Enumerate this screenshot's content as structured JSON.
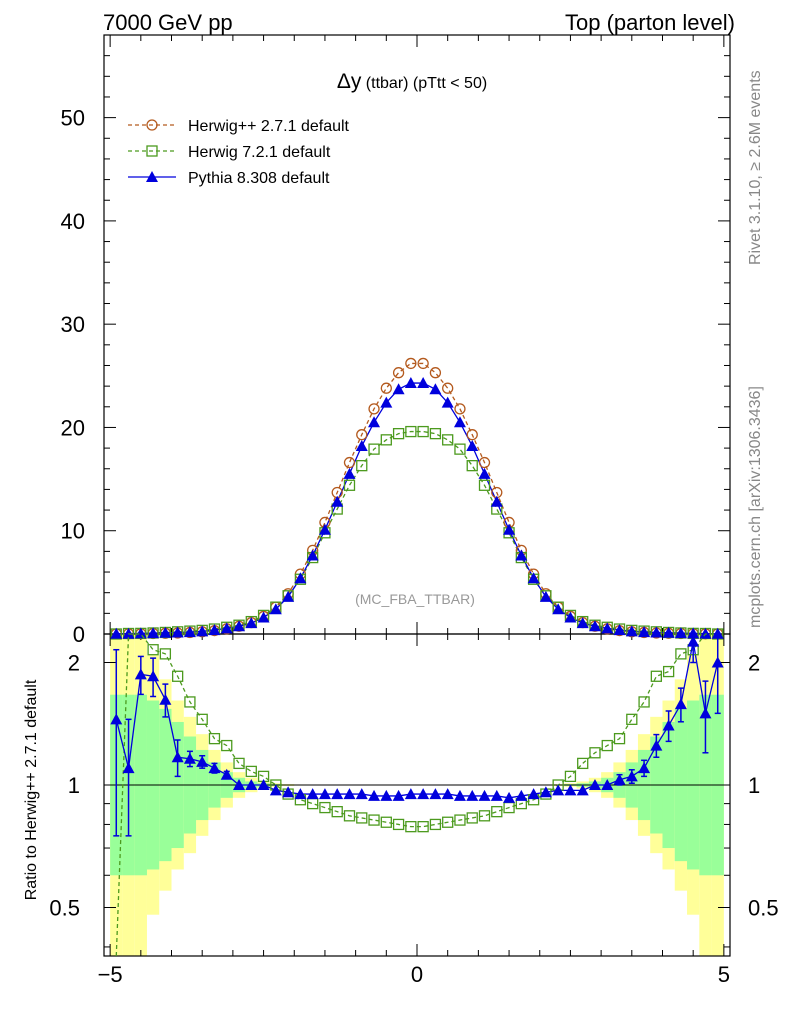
{
  "header": {
    "left": "7000 GeV pp",
    "right": "Top (parton level)"
  },
  "side_labels": {
    "rivet": "Rivet 3.1.10, ≥ 2.6M events",
    "mcplots": "mcplots.cern.ch [arXiv:1306.3436]"
  },
  "plot_title": {
    "main": "Δy",
    "sub": " (ttbar) (pTtt < 50)"
  },
  "watermark": "(MC_FBA_TTBAR)",
  "legend": [
    {
      "label": "Herwig++ 2.7.1 default"
    },
    {
      "label": "Herwig 7.2.1 default"
    },
    {
      "label": "Pythia 8.308 default"
    }
  ],
  "ratio_ylabel": "Ratio to Herwig++ 2.7.1 default",
  "colors": {
    "herwigpp": "#b45a1e",
    "herwig7": "#4c9a1e",
    "pythia": "#0000dd",
    "band_inner": "#99ff99",
    "band_outer": "#ffff99"
  },
  "chart_data": {
    "type": "line",
    "x_ticks": [
      -5,
      0,
      5
    ],
    "x_tick_labels": [
      "−5",
      "0",
      "5"
    ],
    "main": {
      "ylim": [
        0,
        58
      ],
      "y_ticks": [
        0,
        10,
        20,
        30,
        40,
        50
      ],
      "y_tick_labels": [
        "0",
        "10",
        "20",
        "30",
        "40",
        "50"
      ]
    },
    "ratio": {
      "log_scale": true,
      "ylim": [
        0.38,
        2.35
      ],
      "y_ticks": [
        0.5,
        1,
        2
      ],
      "y_tick_labels": [
        "0.5",
        "1",
        "2"
      ]
    },
    "x": [
      -4.9,
      -4.7,
      -4.5,
      -4.3,
      -4.1,
      -3.9,
      -3.7,
      -3.5,
      -3.3,
      -3.1,
      -2.9,
      -2.7,
      -2.5,
      -2.3,
      -2.1,
      -1.9,
      -1.7,
      -1.5,
      -1.3,
      -1.1,
      -0.9,
      -0.7,
      -0.5,
      -0.3,
      -0.1,
      0.1,
      0.3,
      0.5,
      0.7,
      0.9,
      1.1,
      1.3,
      1.5,
      1.7,
      1.9,
      2.1,
      2.3,
      2.5,
      2.7,
      2.9,
      3.1,
      3.3,
      3.5,
      3.7,
      3.9,
      4.1,
      4.3,
      4.5,
      4.7,
      4.9
    ],
    "series": [
      {
        "name": "Herwig++ 2.7.1 default",
        "values": [
          0.01,
          0.02,
          0.03,
          0.05,
          0.07,
          0.1,
          0.15,
          0.22,
          0.33,
          0.5,
          0.75,
          1.1,
          1.7,
          2.6,
          3.9,
          5.8,
          8.1,
          10.8,
          13.7,
          16.6,
          19.3,
          21.8,
          23.8,
          25.3,
          26.2,
          26.2,
          25.3,
          23.8,
          21.8,
          19.3,
          16.6,
          13.7,
          10.8,
          8.1,
          5.8,
          3.9,
          2.6,
          1.7,
          1.1,
          0.75,
          0.5,
          0.33,
          0.22,
          0.15,
          0.1,
          0.07,
          0.05,
          0.03,
          0.02,
          0.01
        ]
      },
      {
        "name": "Herwig 7.2.1 default",
        "values": [
          0.0,
          0.05,
          0.06,
          0.1,
          0.15,
          0.21,
          0.28,
          0.35,
          0.48,
          0.65,
          0.85,
          1.2,
          1.8,
          2.6,
          3.7,
          5.3,
          7.4,
          9.8,
          12.1,
          14.4,
          16.3,
          17.9,
          18.8,
          19.4,
          19.6,
          19.6,
          19.4,
          18.8,
          17.9,
          16.3,
          14.4,
          12.1,
          9.8,
          7.4,
          5.3,
          3.7,
          2.6,
          1.8,
          1.2,
          0.85,
          0.65,
          0.48,
          0.35,
          0.28,
          0.21,
          0.15,
          0.1,
          0.06,
          0.05,
          0.0
        ],
        "ratio": [
          0.0,
          2.5,
          2.4,
          2.15,
          2.1,
          1.85,
          1.6,
          1.45,
          1.3,
          1.25,
          1.13,
          1.08,
          1.05,
          1.0,
          0.95,
          0.92,
          0.9,
          0.88,
          0.86,
          0.84,
          0.83,
          0.82,
          0.81,
          0.8,
          0.79,
          0.79,
          0.8,
          0.81,
          0.82,
          0.83,
          0.84,
          0.86,
          0.88,
          0.9,
          0.92,
          0.95,
          1.0,
          1.05,
          1.13,
          1.2,
          1.25,
          1.3,
          1.45,
          1.6,
          1.85,
          1.9,
          2.1,
          2.15,
          2.4,
          2.5
        ]
      },
      {
        "name": "Pythia 8.308 default",
        "values": [
          0.02,
          0.03,
          0.06,
          0.09,
          0.12,
          0.15,
          0.18,
          0.26,
          0.38,
          0.55,
          0.75,
          1.05,
          1.6,
          2.4,
          3.6,
          5.4,
          7.6,
          10.1,
          12.8,
          15.5,
          18.2,
          20.5,
          22.4,
          23.7,
          24.3,
          24.3,
          23.7,
          22.4,
          20.5,
          18.2,
          15.5,
          12.8,
          10.1,
          7.6,
          5.4,
          3.6,
          2.4,
          1.6,
          1.05,
          0.75,
          0.55,
          0.38,
          0.26,
          0.18,
          0.15,
          0.12,
          0.09,
          0.06,
          0.03,
          0.02
        ],
        "ratio": [
          1.45,
          1.1,
          1.87,
          1.85,
          1.62,
          1.17,
          1.16,
          1.14,
          1.1,
          1.06,
          1.0,
          1.0,
          1.0,
          0.97,
          0.96,
          0.95,
          0.95,
          0.95,
          0.95,
          0.95,
          0.95,
          0.94,
          0.94,
          0.94,
          0.95,
          0.95,
          0.95,
          0.95,
          0.94,
          0.94,
          0.94,
          0.94,
          0.93,
          0.94,
          0.95,
          0.96,
          0.97,
          0.97,
          0.97,
          1.0,
          1.0,
          1.03,
          1.05,
          1.1,
          1.25,
          1.4,
          1.58,
          2.25,
          1.5,
          2.0
        ],
        "ratio_err": [
          0.7,
          0.35,
          0.2,
          0.2,
          0.15,
          0.12,
          0.05,
          0.04,
          0.03,
          0.02,
          0.0,
          0.0,
          0.0,
          0.0,
          0.0,
          0.0,
          0.0,
          0.0,
          0.0,
          0.0,
          0.0,
          0.0,
          0.0,
          0.0,
          0.0,
          0.0,
          0.0,
          0.0,
          0.0,
          0.0,
          0.0,
          0.0,
          0.0,
          0.0,
          0.0,
          0.0,
          0.0,
          0.0,
          0.0,
          0.0,
          0.0,
          0.03,
          0.04,
          0.05,
          0.08,
          0.12,
          0.15,
          0.25,
          0.3,
          0.5
        ]
      }
    ],
    "band_inner": [
      0.6,
      0.6,
      0.6,
      0.62,
      0.65,
      0.7,
      0.76,
      0.82,
      0.88,
      0.93,
      0.96,
      0.98,
      0.99,
      0.995,
      0.997,
      0.998,
      0.999,
      0.999,
      0.999,
      0.999,
      0.999,
      0.999,
      0.999,
      0.999,
      0.999,
      0.999,
      0.999,
      0.999,
      0.999,
      0.999,
      0.999,
      0.999,
      0.999,
      0.999,
      0.999,
      0.998,
      0.997,
      0.995,
      0.99,
      0.98,
      0.96,
      0.93,
      0.88,
      0.82,
      0.76,
      0.7,
      0.65,
      0.62,
      0.6,
      0.6
    ],
    "band_outer": [
      0.38,
      0.38,
      0.38,
      0.48,
      0.55,
      0.62,
      0.68,
      0.75,
      0.82,
      0.88,
      0.93,
      0.96,
      0.98,
      0.99,
      0.995,
      0.997,
      0.998,
      0.998,
      0.998,
      0.998,
      0.998,
      0.998,
      0.998,
      0.998,
      0.998,
      0.998,
      0.998,
      0.998,
      0.998,
      0.998,
      0.998,
      0.998,
      0.998,
      0.998,
      0.998,
      0.997,
      0.995,
      0.99,
      0.98,
      0.96,
      0.93,
      0.88,
      0.82,
      0.75,
      0.68,
      0.62,
      0.55,
      0.48,
      0.38,
      0.38
    ]
  }
}
